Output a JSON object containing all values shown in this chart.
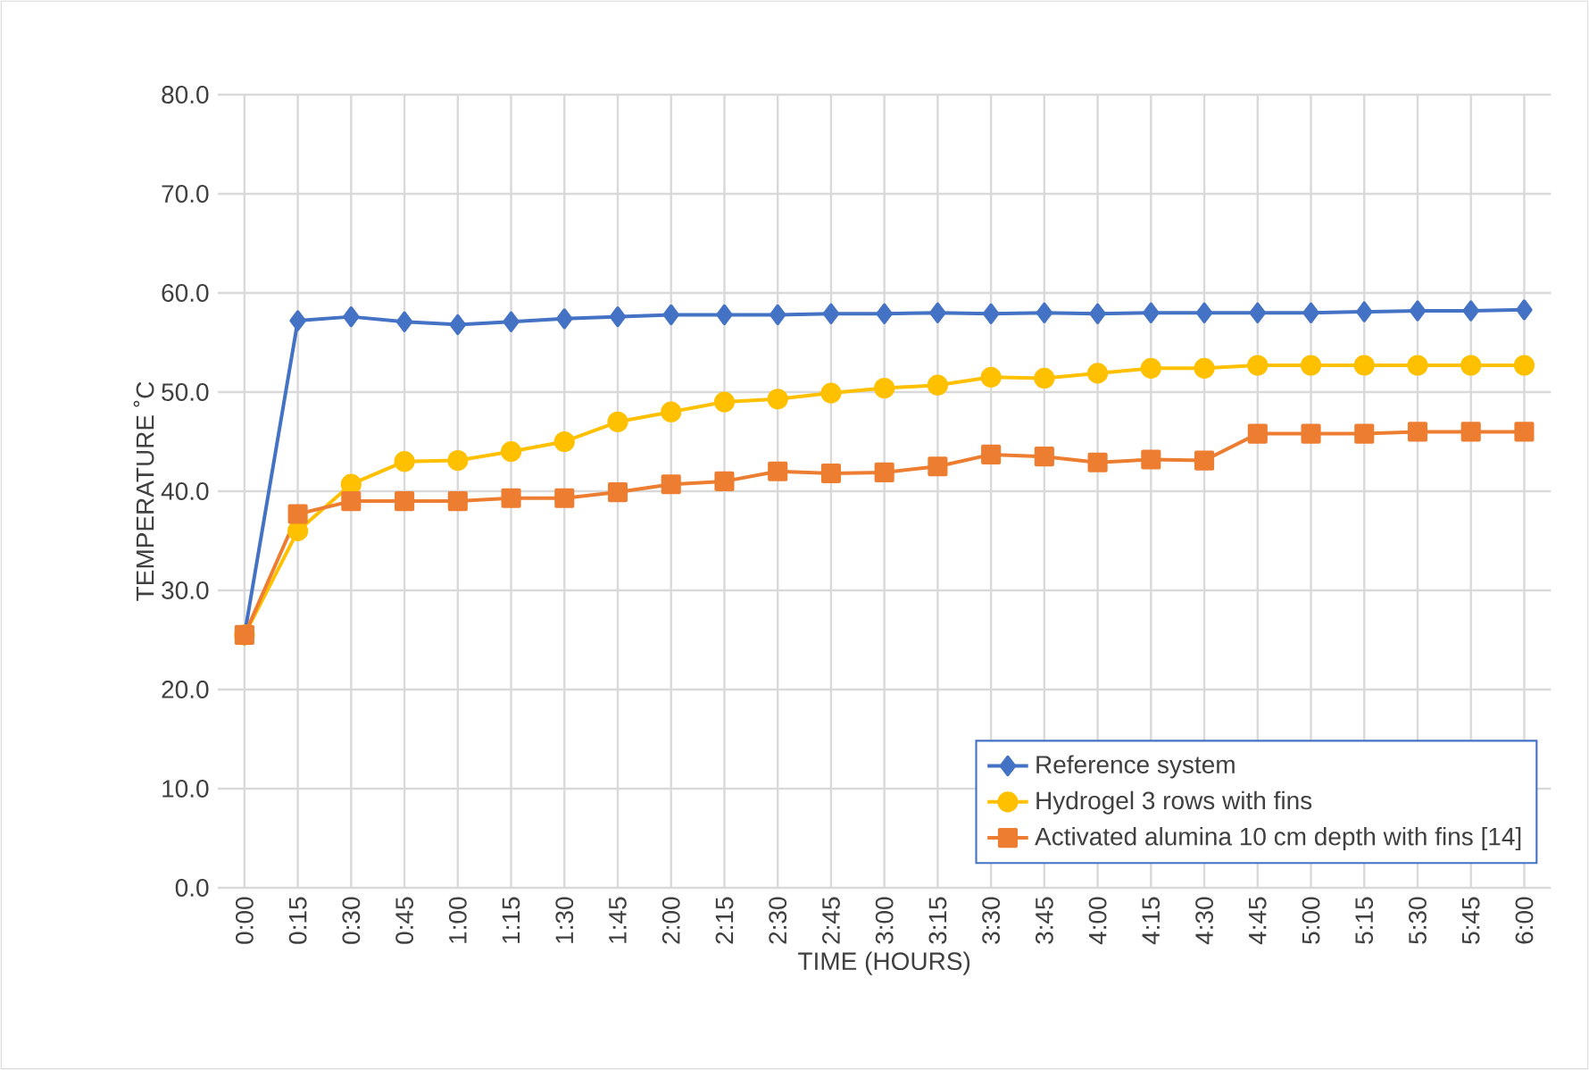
{
  "chart_data": {
    "type": "line",
    "xlabel": "TIME (HOURS)",
    "ylabel": "TEMPERATURE    ˚C",
    "categories": [
      "0:00",
      "0:15",
      "0:30",
      "0:45",
      "1:00",
      "1:15",
      "1:30",
      "1:45",
      "2:00",
      "2:15",
      "2:30",
      "2:45",
      "3:00",
      "3:15",
      "3:30",
      "3:45",
      "4:00",
      "4:15",
      "4:30",
      "4:45",
      "5:00",
      "5:15",
      "5:30",
      "5:45",
      "6:00"
    ],
    "series": [
      {
        "name": "Reference system",
        "color": "#4472c4",
        "marker": "diamond",
        "values": [
          25.5,
          57.2,
          57.6,
          57.1,
          56.8,
          57.1,
          57.4,
          57.6,
          57.8,
          57.8,
          57.8,
          57.9,
          57.9,
          58.0,
          57.9,
          58.0,
          57.9,
          58.0,
          58.0,
          58.0,
          58.0,
          58.1,
          58.2,
          58.2,
          58.3
        ]
      },
      {
        "name": "Hydrogel 3 rows with fins",
        "color": "#ffc000",
        "marker": "circle",
        "values": [
          25.5,
          36.0,
          40.7,
          43.0,
          43.1,
          44.0,
          45.0,
          47.0,
          48.0,
          49.0,
          49.3,
          49.9,
          50.4,
          50.7,
          51.5,
          51.4,
          51.9,
          52.4,
          52.4,
          52.7,
          52.7,
          52.7,
          52.7,
          52.7,
          52.7
        ]
      },
      {
        "name": "Activated alumina 10 cm depth with fins [14]",
        "color": "#ed7d31",
        "marker": "square",
        "values": [
          25.5,
          37.7,
          39.0,
          39.0,
          39.0,
          39.3,
          39.3,
          39.9,
          40.7,
          41.0,
          42.0,
          41.8,
          41.9,
          42.5,
          43.7,
          43.5,
          42.9,
          43.2,
          43.1,
          45.8,
          45.8,
          45.8,
          46.0,
          46.0,
          46.0
        ]
      }
    ],
    "ylim": [
      0,
      80
    ],
    "yticks": [
      {
        "value": 0,
        "label": "0.0"
      },
      {
        "value": 10,
        "label": "10.0"
      },
      {
        "value": 20,
        "label": "20.0"
      },
      {
        "value": 30,
        "label": "30.0"
      },
      {
        "value": 40,
        "label": "40.0"
      },
      {
        "value": 50,
        "label": "50.0"
      },
      {
        "value": 60,
        "label": "60.0"
      },
      {
        "value": 70,
        "label": "70.0"
      },
      {
        "value": 80,
        "label": "80.0"
      }
    ],
    "grid": true,
    "legend": "bottom right",
    "line_style": "solid"
  }
}
